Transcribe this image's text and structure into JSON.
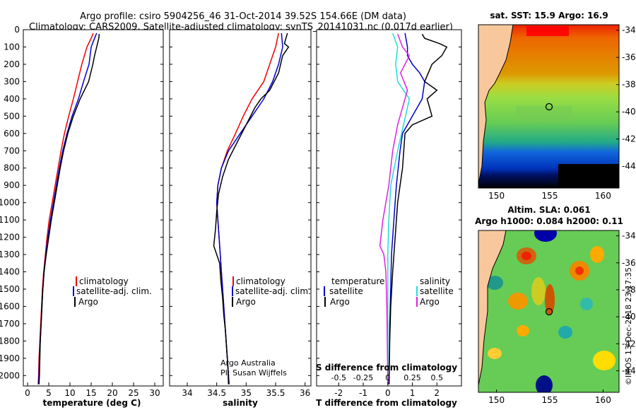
{
  "header": {
    "line1": "Argo profile: csiro 5904256_46 31-Oct-2014 39.52S 154.66E (DM data)",
    "line2": "Climatology: CARS2009. Satellite-adjusted climatology: synTS_20141031.nc (0.017d earlier)"
  },
  "colors": {
    "climatology": "#ee0000",
    "satellite": "#0000cc",
    "argo": "#000000",
    "sat_salinity": "#22dddd",
    "argo_salinity": "#dd22dd",
    "land": "#f8c89c"
  },
  "depth_ticks": [
    "0",
    "100",
    "200",
    "300",
    "400",
    "500",
    "600",
    "700",
    "800",
    "900",
    "1000",
    "1100",
    "1200",
    "1300",
    "1400",
    "1500",
    "1600",
    "1700",
    "1800",
    "1900",
    "2000"
  ],
  "chart_data": [
    {
      "type": "line",
      "xlabel": "temperature (deg C)",
      "xlim": [
        -1,
        32
      ],
      "ylim": [
        2060,
        0
      ],
      "xticks": [
        "0",
        "5",
        "10",
        "15",
        "20",
        "25",
        "30"
      ],
      "legend": [
        "climatology",
        "satellite-adj. clim.",
        "Argo"
      ],
      "series": [
        {
          "name": "climatology",
          "points": [
            [
              15.5,
              20
            ],
            [
              15,
              50
            ],
            [
              14,
              100
            ],
            [
              12.8,
              200
            ],
            [
              11.8,
              300
            ],
            [
              10.8,
              400
            ],
            [
              9.7,
              500
            ],
            [
              8.7,
              600
            ],
            [
              7.9,
              700
            ],
            [
              7.2,
              800
            ],
            [
              6.5,
              900
            ],
            [
              5.8,
              1000
            ],
            [
              5.1,
              1100
            ],
            [
              4.6,
              1200
            ],
            [
              4.2,
              1300
            ],
            [
              3.8,
              1400
            ],
            [
              3.5,
              1500
            ],
            [
              3.3,
              1600
            ],
            [
              3.1,
              1700
            ],
            [
              2.9,
              1800
            ],
            [
              2.7,
              1900
            ],
            [
              2.6,
              2000
            ],
            [
              2.5,
              2050
            ]
          ]
        },
        {
          "name": "satellite-adj. clim.",
          "points": [
            [
              16.3,
              20
            ],
            [
              15.8,
              50
            ],
            [
              15,
              100
            ],
            [
              14.5,
              200
            ],
            [
              13.2,
              300
            ],
            [
              12,
              400
            ],
            [
              10.5,
              500
            ],
            [
              9.3,
              600
            ],
            [
              8.3,
              700
            ],
            [
              7.5,
              800
            ],
            [
              6.8,
              900
            ],
            [
              6.1,
              1000
            ],
            [
              5.4,
              1100
            ],
            [
              4.8,
              1200
            ],
            [
              4.3,
              1300
            ],
            [
              3.9,
              1400
            ],
            [
              3.6,
              1500
            ],
            [
              3.4,
              1600
            ],
            [
              3.2,
              1700
            ],
            [
              3.0,
              1800
            ],
            [
              2.8,
              1900
            ],
            [
              2.7,
              2000
            ],
            [
              2.6,
              2050
            ]
          ]
        },
        {
          "name": "Argo",
          "points": [
            [
              16.9,
              25
            ],
            [
              16.8,
              50
            ],
            [
              16.3,
              100
            ],
            [
              15.8,
              150
            ],
            [
              15.4,
              200
            ],
            [
              14.4,
              300
            ],
            [
              12.4,
              400
            ],
            [
              10.8,
              500
            ],
            [
              9.5,
              600
            ],
            [
              8.5,
              700
            ],
            [
              7.7,
              800
            ],
            [
              7,
              900
            ],
            [
              6.3,
              1000
            ],
            [
              5.6,
              1100
            ],
            [
              5,
              1200
            ],
            [
              4.4,
              1300
            ],
            [
              3.9,
              1400
            ],
            [
              3.6,
              1500
            ],
            [
              3.4,
              1600
            ],
            [
              3.2,
              1700
            ],
            [
              3,
              1800
            ],
            [
              2.9,
              1900
            ],
            [
              2.8,
              2000
            ],
            [
              2.7,
              2050
            ]
          ]
        }
      ]
    },
    {
      "type": "line",
      "xlabel": "salinity",
      "xlim": [
        33.7,
        36.1
      ],
      "ylim": [
        2060,
        0
      ],
      "xticks": [
        "34",
        "34.5",
        "35",
        "35.5",
        "36"
      ],
      "legend": [
        "climatology",
        "satellite-adj. clim.",
        "Argo"
      ],
      "annotation": [
        "Argo Australia",
        "PI: Susan Wijffels"
      ],
      "series": [
        {
          "name": "climatology",
          "points": [
            [
              35.55,
              20
            ],
            [
              35.5,
              100
            ],
            [
              35.4,
              200
            ],
            [
              35.3,
              300
            ],
            [
              35.1,
              400
            ],
            [
              34.95,
              500
            ],
            [
              34.82,
              600
            ],
            [
              34.68,
              700
            ],
            [
              34.58,
              800
            ],
            [
              34.52,
              900
            ],
            [
              34.5,
              1000
            ],
            [
              34.52,
              1100
            ],
            [
              34.54,
              1200
            ],
            [
              34.56,
              1300
            ],
            [
              34.58,
              1400
            ],
            [
              34.6,
              1500
            ],
            [
              34.62,
              1600
            ],
            [
              34.64,
              1700
            ],
            [
              34.66,
              1800
            ],
            [
              34.68,
              1900
            ],
            [
              34.7,
              2000
            ],
            [
              34.71,
              2050
            ]
          ]
        },
        {
          "name": "satellite-adj. clim.",
          "points": [
            [
              35.6,
              20
            ],
            [
              35.62,
              100
            ],
            [
              35.55,
              200
            ],
            [
              35.45,
              300
            ],
            [
              35.3,
              400
            ],
            [
              35.1,
              500
            ],
            [
              34.9,
              600
            ],
            [
              34.7,
              700
            ],
            [
              34.58,
              800
            ],
            [
              34.52,
              900
            ],
            [
              34.5,
              1000
            ],
            [
              34.52,
              1100
            ],
            [
              34.54,
              1200
            ],
            [
              34.56,
              1300
            ],
            [
              34.58,
              1400
            ],
            [
              34.6,
              1500
            ],
            [
              34.62,
              1600
            ],
            [
              34.64,
              1700
            ],
            [
              34.66,
              1800
            ],
            [
              34.68,
              1900
            ],
            [
              34.7,
              2000
            ],
            [
              34.71,
              2050
            ]
          ]
        },
        {
          "name": "Argo",
          "points": [
            [
              35.7,
              20
            ],
            [
              35.65,
              80
            ],
            [
              35.72,
              100
            ],
            [
              35.62,
              150
            ],
            [
              35.55,
              250
            ],
            [
              35.4,
              350
            ],
            [
              35.25,
              400
            ],
            [
              35.15,
              450
            ],
            [
              35,
              550
            ],
            [
              34.85,
              650
            ],
            [
              34.7,
              750
            ],
            [
              34.6,
              850
            ],
            [
              34.53,
              950
            ],
            [
              34.5,
              1050
            ],
            [
              34.48,
              1150
            ],
            [
              34.45,
              1250
            ],
            [
              34.5,
              1300
            ],
            [
              34.55,
              1350
            ],
            [
              34.57,
              1450
            ],
            [
              34.6,
              1550
            ],
            [
              34.62,
              1650
            ],
            [
              34.65,
              1750
            ],
            [
              34.67,
              1850
            ],
            [
              34.69,
              1950
            ],
            [
              34.7,
              2050
            ]
          ]
        }
      ]
    },
    {
      "type": "line",
      "xlabel": "T difference from climatology",
      "sublabel": "S difference from climatology",
      "xlim": [
        -2.9,
        3.0
      ],
      "ylim": [
        2060,
        0
      ],
      "xticks": [
        "-2",
        "-1",
        "0",
        "1",
        "2"
      ],
      "sticks": [
        "-0.5",
        "-0.25",
        "0",
        "0.25",
        "0.5"
      ],
      "legend_title_left": "temperature",
      "legend_title_right": "salinity",
      "legend_left": [
        "satellite",
        "Argo"
      ],
      "legend_right": [
        "satellite",
        "Argo"
      ],
      "series": [
        {
          "name": "T satellite",
          "points": [
            [
              0.7,
              20
            ],
            [
              0.8,
              100
            ],
            [
              0.8,
              150
            ],
            [
              1.0,
              200
            ],
            [
              1.3,
              250
            ],
            [
              1.5,
              300
            ],
            [
              1.4,
              400
            ],
            [
              1.0,
              500
            ],
            [
              0.6,
              600
            ],
            [
              0.5,
              700
            ],
            [
              0.35,
              900
            ],
            [
              0.25,
              1100
            ],
            [
              0.15,
              1300
            ],
            [
              0.12,
              1500
            ],
            [
              0.08,
              1700
            ],
            [
              0.05,
              2050
            ]
          ]
        },
        {
          "name": "T Argo",
          "points": [
            [
              1.4,
              25
            ],
            [
              1.5,
              50
            ],
            [
              2.1,
              80
            ],
            [
              2.4,
              100
            ],
            [
              2.2,
              150
            ],
            [
              1.8,
              200
            ],
            [
              1.5,
              300
            ],
            [
              2.0,
              350
            ],
            [
              1.6,
              400
            ],
            [
              1.8,
              500
            ],
            [
              1.0,
              550
            ],
            [
              0.7,
              600
            ],
            [
              0.6,
              800
            ],
            [
              0.4,
              1000
            ],
            [
              0.3,
              1200
            ],
            [
              0.2,
              1400
            ],
            [
              0.12,
              1600
            ],
            [
              0.08,
              1800
            ],
            [
              0.05,
              2050
            ]
          ]
        },
        {
          "name": "S satellite",
          "points": [
            [
              0.05,
              20
            ],
            [
              0.1,
              100
            ],
            [
              0.08,
              200
            ],
            [
              0.1,
              300
            ],
            [
              0.22,
              400
            ],
            [
              0.18,
              500
            ],
            [
              0.1,
              700
            ],
            [
              0.03,
              900
            ],
            [
              0.01,
              1100
            ],
            [
              0,
              1300
            ],
            [
              0,
              1500
            ],
            [
              0,
              1700
            ],
            [
              0,
              2050
            ]
          ]
        },
        {
          "name": "S Argo",
          "points": [
            [
              0.1,
              25
            ],
            [
              0.15,
              100
            ],
            [
              0.22,
              150
            ],
            [
              0.13,
              250
            ],
            [
              0.2,
              350
            ],
            [
              0.15,
              450
            ],
            [
              0.1,
              550
            ],
            [
              0.05,
              700
            ],
            [
              0.01,
              900
            ],
            [
              -0.05,
              1100
            ],
            [
              -0.08,
              1250
            ],
            [
              -0.04,
              1300
            ],
            [
              -0.02,
              1400
            ],
            [
              -0.01,
              1600
            ],
            [
              0,
              2050
            ]
          ]
        }
      ]
    }
  ],
  "map_top": {
    "title": "sat. SST: 15.9 Argo: 16.9",
    "xticks": [
      "150",
      "155",
      "160"
    ],
    "yticks": [
      "-34",
      "-36",
      "-38",
      "-40",
      "-42",
      "-44"
    ]
  },
  "map_bottom": {
    "title1": "Altim. SLA: 0.061",
    "title2": "Argo h1000: 0.084 h2000: 0.11",
    "xticks": [
      "150",
      "155",
      "160"
    ],
    "yticks": [
      "-34",
      "-36",
      "-38",
      "-40",
      "-42",
      "-44"
    ]
  },
  "timestamp": "©IMOS 13-Dec-2018 23:17:35"
}
